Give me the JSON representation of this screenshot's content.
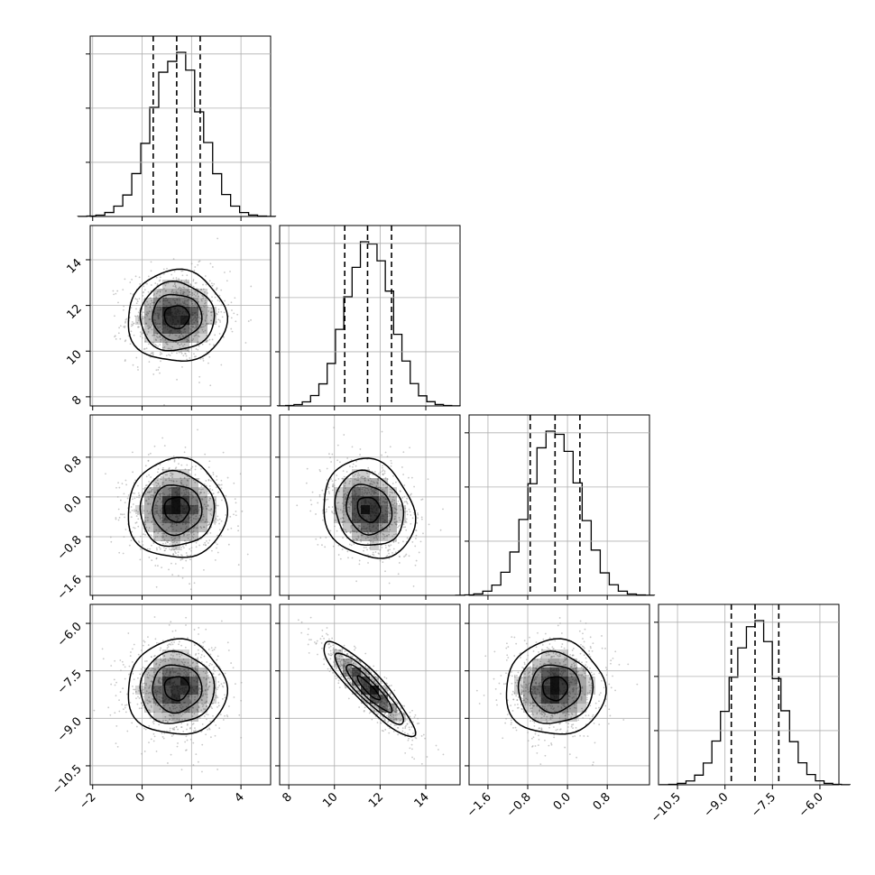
{
  "chart_data": {
    "type": "corner",
    "grid": true,
    "quantiles": [
      0.16,
      0.5,
      0.84
    ],
    "colors": {
      "hist": "#000000",
      "contour": "#000000",
      "density": "#000000",
      "grid": "#b0b0b0"
    },
    "parameters": [
      {
        "mean": 1.4,
        "std": 1.0,
        "range": [
          -2.1,
          5.2
        ],
        "ticks": [
          -2,
          0,
          2,
          4
        ],
        "tick_labels": [
          "−2",
          "0",
          "2",
          "4"
        ],
        "quantile_values": [
          0.45,
          1.4,
          2.35
        ]
      },
      {
        "mean": 11.5,
        "std": 1.0,
        "range": [
          7.6,
          15.5
        ],
        "ticks": [
          8,
          10,
          12,
          14
        ],
        "tick_labels": [
          "8",
          "10",
          "12",
          "14"
        ],
        "quantile_values": [
          10.45,
          11.45,
          12.5
        ]
      },
      {
        "mean": -0.25,
        "std": 0.5,
        "range": [
          -1.98,
          1.65
        ],
        "ticks": [
          -1.6,
          -0.8,
          0.0,
          0.8
        ],
        "tick_labels": [
          "−1.6",
          "−0.8",
          "0.0",
          "0.8"
        ],
        "quantile_values": [
          -0.75,
          -0.25,
          0.25
        ]
      },
      {
        "mean": -8.05,
        "std": 0.75,
        "range": [
          -11.1,
          -5.4
        ],
        "ticks": [
          -10.5,
          -9.0,
          -7.5,
          -6.0
        ],
        "tick_labels": [
          "−10.5",
          "−9.0",
          "−7.5",
          "−6.0"
        ],
        "quantile_values": [
          -8.8,
          -8.05,
          -7.3
        ]
      }
    ],
    "correlations": [
      {
        "x": 0,
        "y": 1,
        "rho": 0.0
      },
      {
        "x": 0,
        "y": 2,
        "rho": 0.0
      },
      {
        "x": 1,
        "y": 2,
        "rho": -0.15
      },
      {
        "x": 0,
        "y": 3,
        "rho": 0.0
      },
      {
        "x": 1,
        "y": 3,
        "rho": -0.9
      },
      {
        "x": 2,
        "y": 3,
        "rho": 0.0
      }
    ],
    "contour_levels_sigma": [
      0.5,
      1.0,
      1.5,
      2.0
    ]
  }
}
